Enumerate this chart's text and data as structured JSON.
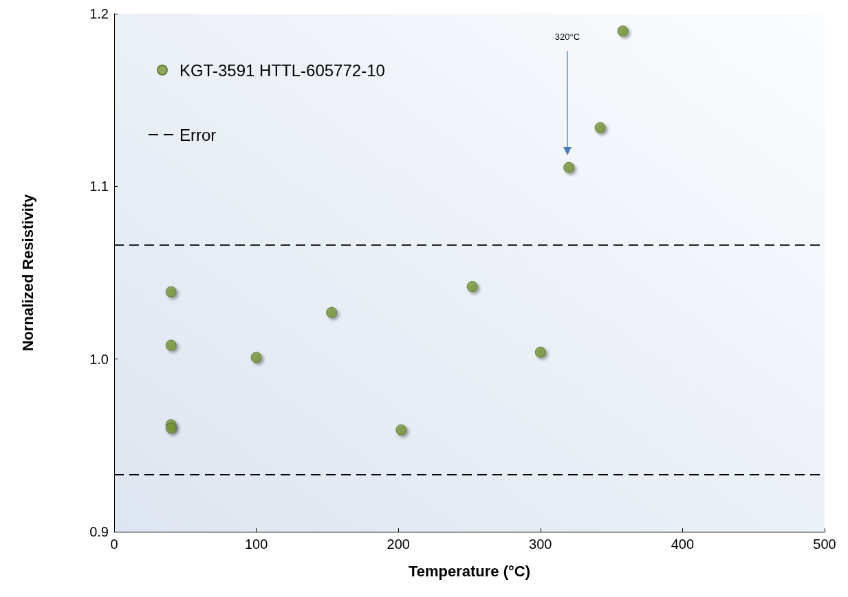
{
  "chart_data": {
    "type": "scatter",
    "xlabel": "Temperature (°C)",
    "ylabel": "Nornalized Resistivity",
    "x": [
      40,
      40,
      40,
      40,
      100,
      153,
      202,
      252,
      300,
      320,
      342,
      358
    ],
    "series": [
      {
        "name": "KGT-3591 HTTL-605772-10",
        "color": "#77963a",
        "values": [
          1.039,
          1.008,
          0.962,
          0.96,
          1.001,
          1.027,
          0.959,
          1.042,
          1.004,
          1.111,
          1.134,
          1.19
        ]
      }
    ],
    "xlim": [
      0,
      500
    ],
    "xticks": [
      0,
      100,
      200,
      300,
      400,
      500
    ],
    "ylim": [
      0.9,
      1.2
    ],
    "yticks": [
      {
        "value": 0.9,
        "label": "0.9"
      },
      {
        "value": 1.0,
        "label": "1.0"
      },
      {
        "value": 1.1,
        "label": "1.1"
      },
      {
        "value": 1.2,
        "label": "1.2"
      }
    ],
    "ref_lines": [
      {
        "axis": "y",
        "value": 1.066,
        "label": "Error",
        "color": "#000000",
        "line_style": "dashed"
      },
      {
        "axis": "y",
        "value": 0.933,
        "color": "#000000",
        "line_style": "dashed"
      }
    ],
    "annotations": [
      "320°C"
    ],
    "marker": "circle",
    "grid": false,
    "legend": "top left"
  }
}
